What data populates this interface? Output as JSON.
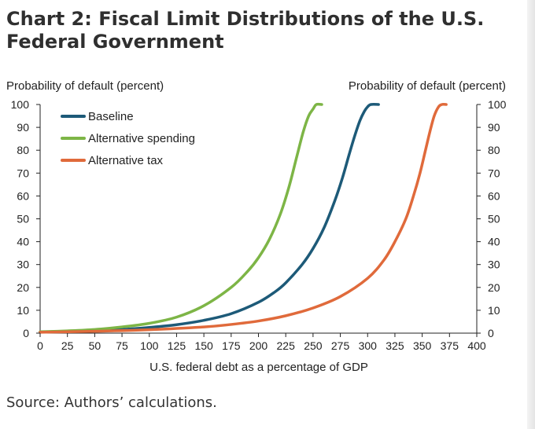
{
  "title": "Chart 2: Fiscal Limit Distributions of the U.S. Federal Government",
  "source": "Source: Authors’ calculations.",
  "chart_data": {
    "type": "line",
    "title": "Chart 2: Fiscal Limit Distributions of the U.S. Federal Government",
    "xlabel": "U.S. federal debt as a percentage of GDP",
    "ylabel_left": "Probability of default (percent)",
    "ylabel_right": "Probability of default (percent)",
    "xlim": [
      0,
      400
    ],
    "ylim": [
      0,
      100
    ],
    "xticks": [
      "0",
      "25",
      "50",
      "75",
      "100",
      "125",
      "150",
      "175",
      "200",
      "225",
      "250",
      "275",
      "300",
      "325",
      "350",
      "375",
      "400"
    ],
    "yticks": [
      "0",
      "10",
      "20",
      "30",
      "40",
      "50",
      "60",
      "70",
      "80",
      "90",
      "100"
    ],
    "legend_position": "top-left",
    "series": [
      {
        "name": "Baseline",
        "color": "#1d5a78",
        "points": [
          [
            0,
            0.5
          ],
          [
            25,
            0.8
          ],
          [
            50,
            1.1
          ],
          [
            75,
            1.6
          ],
          [
            100,
            2.5
          ],
          [
            125,
            3.7
          ],
          [
            150,
            5.6
          ],
          [
            175,
            8.5
          ],
          [
            200,
            13.5
          ],
          [
            215,
            18
          ],
          [
            225,
            22
          ],
          [
            240,
            30
          ],
          [
            250,
            37
          ],
          [
            260,
            46
          ],
          [
            270,
            58
          ],
          [
            277,
            68
          ],
          [
            283,
            78
          ],
          [
            288,
            86
          ],
          [
            293,
            93
          ],
          [
            297,
            97
          ],
          [
            300,
            99
          ],
          [
            303,
            100
          ],
          [
            310,
            100
          ]
        ]
      },
      {
        "name": "Alternative spending",
        "color": "#7db546",
        "points": [
          [
            0,
            0.6
          ],
          [
            25,
            1.0
          ],
          [
            50,
            1.6
          ],
          [
            75,
            2.7
          ],
          [
            100,
            4.3
          ],
          [
            125,
            7
          ],
          [
            150,
            12
          ],
          [
            175,
            20
          ],
          [
            190,
            27
          ],
          [
            200,
            33
          ],
          [
            210,
            41
          ],
          [
            220,
            52
          ],
          [
            228,
            64
          ],
          [
            235,
            77
          ],
          [
            241,
            88
          ],
          [
            246,
            95
          ],
          [
            250,
            98
          ],
          [
            253,
            100
          ],
          [
            258,
            100
          ]
        ]
      },
      {
        "name": "Alternative tax",
        "color": "#e06a3b",
        "points": [
          [
            0,
            0.4
          ],
          [
            50,
            0.8
          ],
          [
            100,
            1.5
          ],
          [
            150,
            2.7
          ],
          [
            175,
            3.8
          ],
          [
            200,
            5.3
          ],
          [
            225,
            7.6
          ],
          [
            250,
            11
          ],
          [
            275,
            16
          ],
          [
            300,
            24
          ],
          [
            315,
            32
          ],
          [
            325,
            40
          ],
          [
            335,
            50
          ],
          [
            342,
            60
          ],
          [
            348,
            70
          ],
          [
            353,
            80
          ],
          [
            357,
            88
          ],
          [
            361,
            95
          ],
          [
            365,
            99
          ],
          [
            368,
            100
          ],
          [
            372,
            100
          ]
        ]
      }
    ]
  }
}
